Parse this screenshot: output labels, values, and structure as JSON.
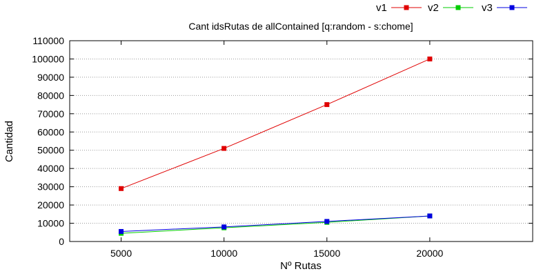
{
  "chart_data": {
    "type": "line",
    "title": "Cant idsRutas de allContained [q:random - s:chome]",
    "xlabel": "Nº Rutas",
    "ylabel": "Cantidad",
    "x": [
      5000,
      10000,
      15000,
      20000
    ],
    "xlim": [
      2500,
      25000
    ],
    "ylim": [
      0,
      110000
    ],
    "x_ticks": [
      "5000",
      "10000",
      "15000",
      "20000"
    ],
    "y_ticks": [
      "0",
      "10000",
      "20000",
      "30000",
      "40000",
      "50000",
      "60000",
      "70000",
      "80000",
      "90000",
      "100000",
      "110000"
    ],
    "grid": "horizontal dotted",
    "legend_position": "top-right",
    "series": [
      {
        "name": "v1",
        "color": "#e00000",
        "values": [
          29000,
          51000,
          75000,
          100000
        ]
      },
      {
        "name": "v2",
        "color": "#00cc00",
        "values": [
          4500,
          7500,
          10500,
          14000
        ]
      },
      {
        "name": "v3",
        "color": "#0000e0",
        "values": [
          5500,
          8000,
          11000,
          14000
        ]
      }
    ]
  }
}
